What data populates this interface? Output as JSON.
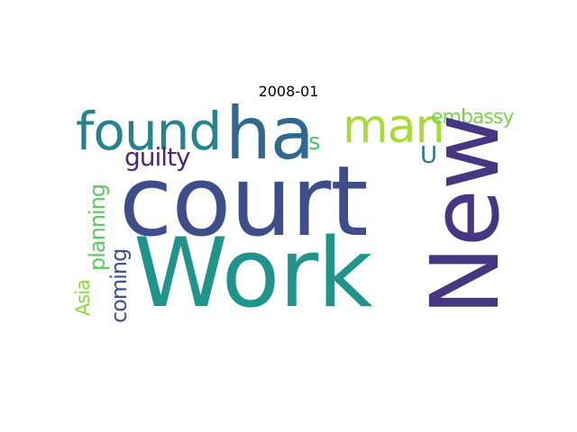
{
  "title": "2008-01",
  "words": {
    "court": {
      "text": "court",
      "color": "#3e4e8a"
    },
    "work": {
      "text": "Work",
      "color": "#20938c"
    },
    "new": {
      "text": "New",
      "color": "#453781"
    },
    "ha": {
      "text": "ha",
      "color": "#31688e"
    },
    "found": {
      "text": "found",
      "color": "#26828e"
    },
    "man": {
      "text": "man",
      "color": "#a8db34"
    },
    "embassy": {
      "text": "embassy",
      "color": "#7ad151"
    },
    "s": {
      "text": "s",
      "color": "#4ac16d"
    },
    "u": {
      "text": "U",
      "color": "#2a788e"
    },
    "guilty": {
      "text": "guilty",
      "color": "#482878"
    },
    "planning": {
      "text": "planning",
      "color": "#5ec962"
    },
    "coming": {
      "text": "coming",
      "color": "#3b528b"
    },
    "asia": {
      "text": "Asia",
      "color": "#8fd744"
    }
  }
}
